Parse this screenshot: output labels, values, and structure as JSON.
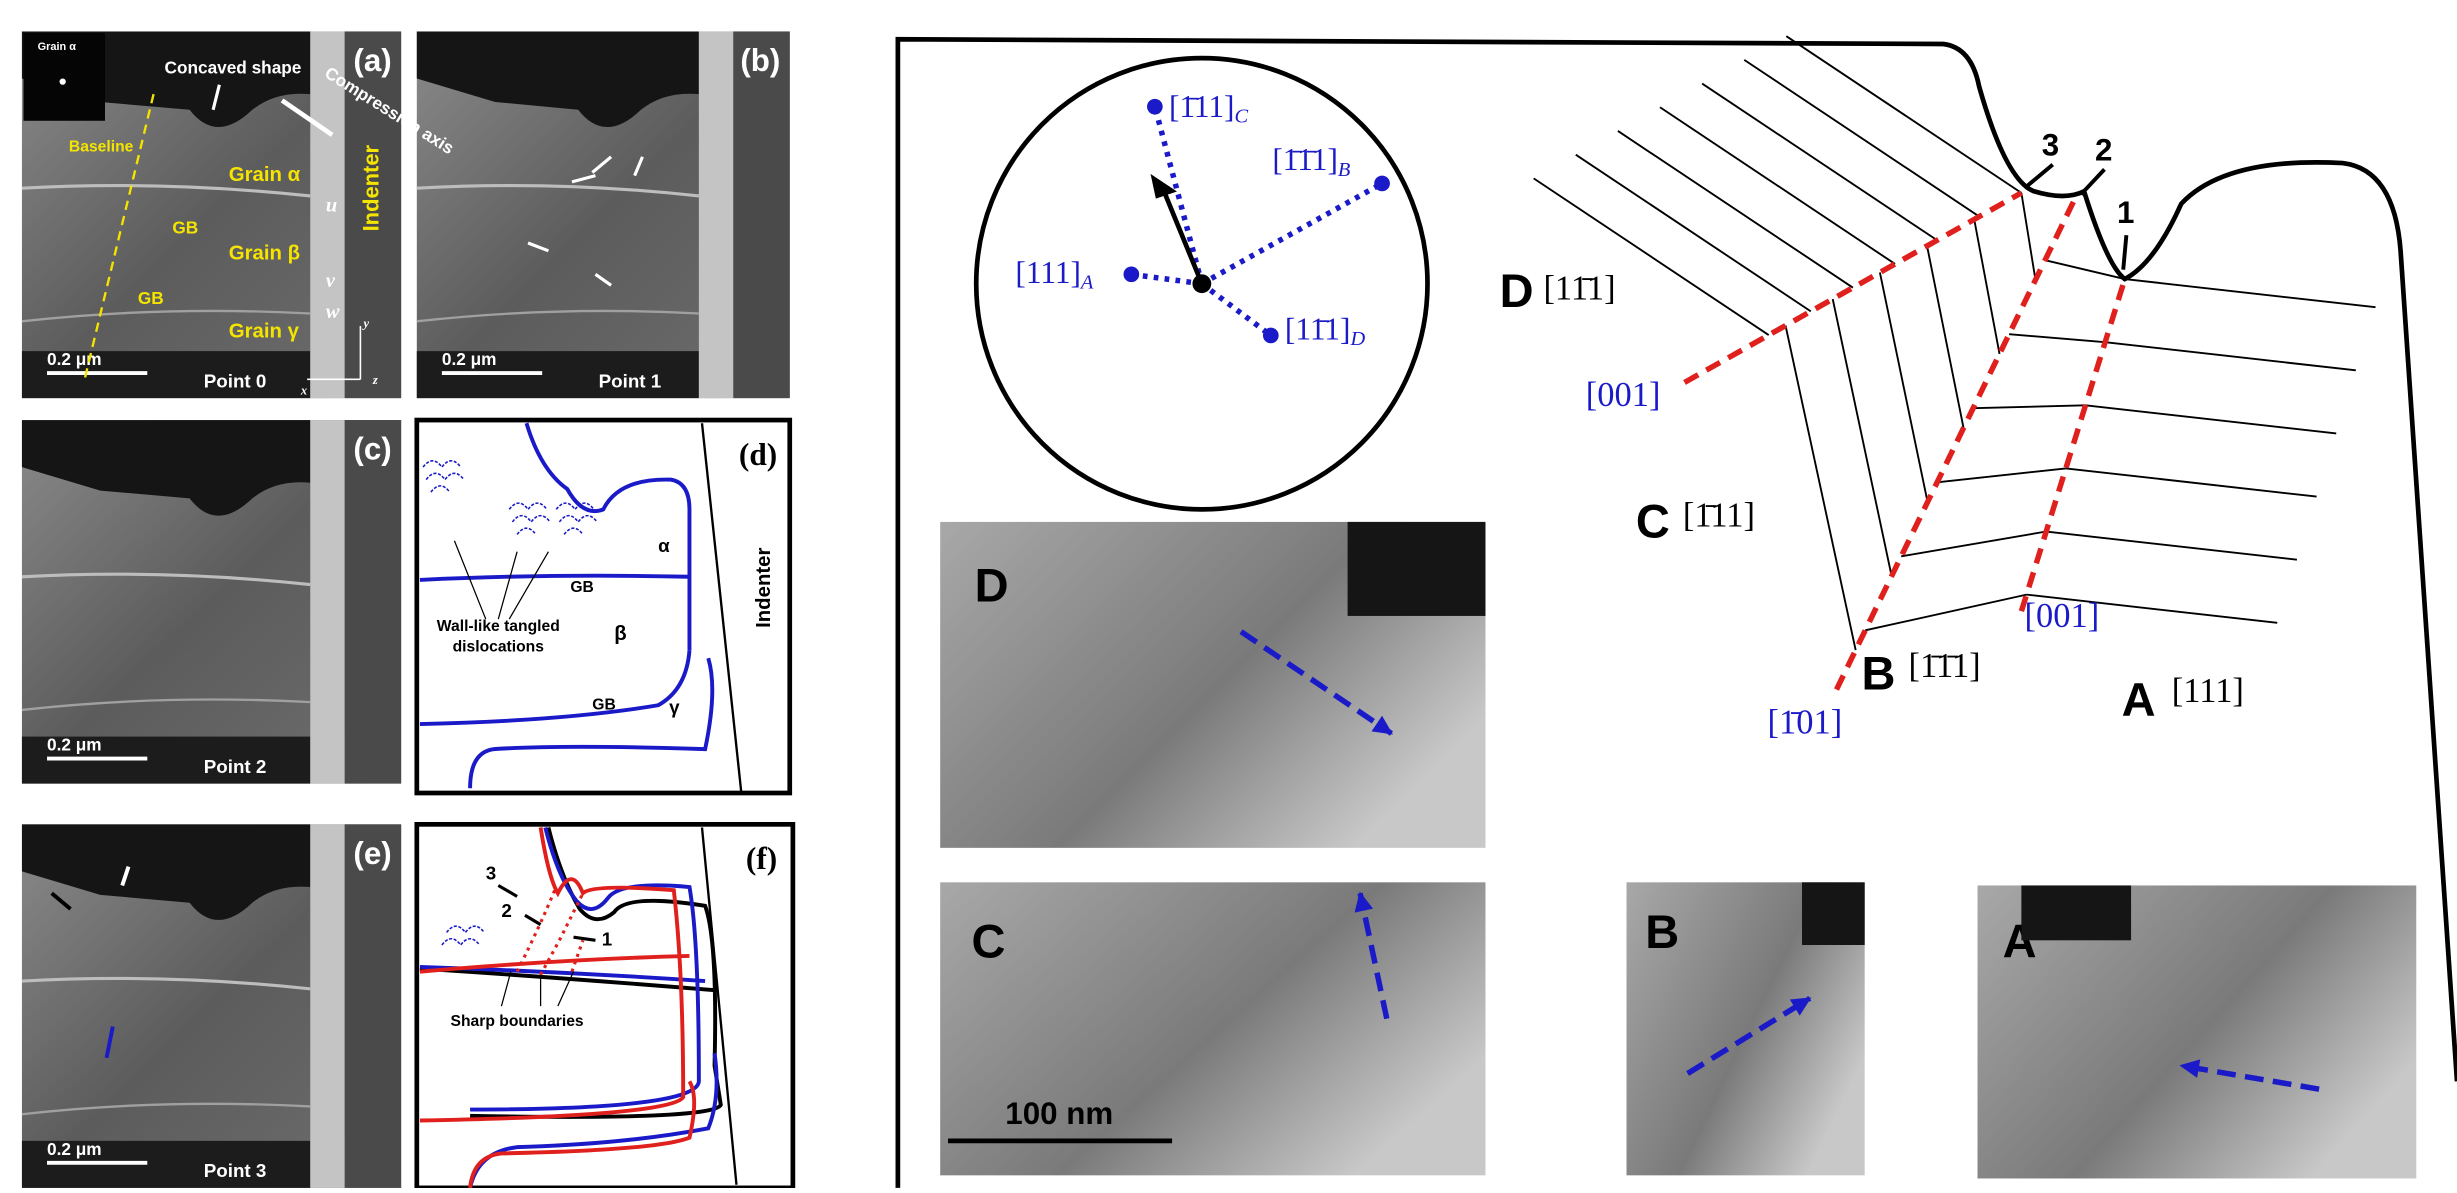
{
  "panels": {
    "a": {
      "label": "(a)",
      "inset_label": "Grain α",
      "concaved_shape": "Concaved shape",
      "compression_axis": "Compression axis",
      "baseline": "Baseline",
      "grain_alpha": "Grain α",
      "gb_upper": "GB",
      "grain_beta": "Grain β",
      "gb_lower": "GB",
      "grain_gamma": "Grain γ",
      "indenter": "Indenter",
      "markers": [
        "u",
        "v",
        "w"
      ],
      "axes": [
        "y",
        "z",
        "x"
      ],
      "scale_bar": "0.2 μm",
      "caption": "Point 0"
    },
    "b": {
      "label": "(b)",
      "scale_bar": "0.2 μm",
      "caption": "Point 1"
    },
    "c": {
      "label": "(c)",
      "scale_bar": "0.2 μm",
      "caption": "Point 2"
    },
    "d": {
      "label": "(d)",
      "alpha": "α",
      "gb_upper": "GB",
      "beta": "β",
      "note": [
        "Wall-like tangled",
        "dislocations"
      ],
      "gb_lower": "GB",
      "gamma": "γ",
      "indenter": "Indenter"
    },
    "e": {
      "label": "(e)",
      "scale_bar": "0.2 μm",
      "caption": "Point 3"
    },
    "f": {
      "label": "(f)",
      "steps": [
        "3",
        "2",
        "1"
      ],
      "note": "Sharp boundaries"
    }
  },
  "schematic": {
    "pole_figure": [
      {
        "index": "[1̄11]",
        "sub": "C"
      },
      {
        "index": "[1̄1̄1]",
        "sub": "B"
      },
      {
        "index": "[111]",
        "sub": "A"
      },
      {
        "index": "[11̄1]",
        "sub": "D"
      }
    ],
    "grains": [
      {
        "letter": "D",
        "index": "[11̄1]"
      },
      {
        "letter": "C",
        "index": "[1̄11]"
      },
      {
        "letter": "B",
        "index": "[1̄1̄1]"
      },
      {
        "letter": "A",
        "index": "[111]"
      }
    ],
    "boundaries": [
      "[001]",
      "[001]",
      "[1̄01]"
    ],
    "steps": [
      "3",
      "2",
      "1"
    ],
    "micrographs": [
      "D",
      "C",
      "B",
      "A"
    ],
    "scale_bar": "100 nm"
  }
}
